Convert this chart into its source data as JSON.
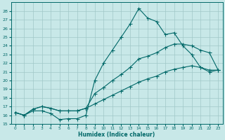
{
  "xlabel": "Humidex (Indice chaleur)",
  "bg_color": "#c8e8e8",
  "grid_color": "#a0c8c8",
  "line_color": "#006868",
  "xlim": [
    -0.5,
    23.5
  ],
  "ylim": [
    15,
    29
  ],
  "yticks": [
    15,
    16,
    17,
    18,
    19,
    20,
    21,
    22,
    23,
    24,
    25,
    26,
    27,
    28
  ],
  "xticks": [
    0,
    1,
    2,
    3,
    4,
    5,
    6,
    7,
    8,
    9,
    10,
    11,
    12,
    13,
    14,
    15,
    16,
    17,
    18,
    19,
    20,
    21,
    22,
    23
  ],
  "series1_x": [
    0,
    1,
    2,
    3,
    4,
    5,
    6,
    7,
    8,
    9,
    10,
    11,
    12,
    13,
    14,
    15,
    16,
    17,
    18,
    19,
    20,
    21,
    22,
    23
  ],
  "series1_y": [
    16.3,
    16.0,
    16.5,
    16.5,
    16.2,
    15.5,
    15.6,
    15.6,
    16.0,
    20.0,
    22.0,
    23.5,
    25.0,
    26.5,
    28.3,
    27.2,
    26.8,
    25.3,
    25.5,
    24.0,
    23.0,
    21.5,
    21.0,
    21.2
  ],
  "series2_x": [
    0,
    1,
    2,
    3,
    4,
    5,
    6,
    7,
    8,
    9,
    10,
    11,
    12,
    13,
    14,
    15,
    16,
    17,
    18,
    19,
    20,
    21,
    22,
    23
  ],
  "series2_y": [
    16.3,
    16.0,
    16.7,
    17.0,
    16.8,
    16.5,
    16.5,
    16.5,
    16.8,
    18.5,
    19.2,
    20.0,
    20.7,
    21.5,
    22.5,
    22.8,
    23.2,
    23.8,
    24.2,
    24.2,
    24.0,
    23.5,
    23.2,
    21.2
  ],
  "series3_x": [
    0,
    1,
    2,
    3,
    4,
    5,
    6,
    7,
    8,
    9,
    10,
    11,
    12,
    13,
    14,
    15,
    16,
    17,
    18,
    19,
    20,
    21,
    22,
    23
  ],
  "series3_y": [
    16.3,
    16.0,
    16.7,
    17.0,
    16.8,
    16.5,
    16.5,
    16.5,
    16.8,
    17.3,
    17.8,
    18.3,
    18.8,
    19.3,
    19.8,
    20.2,
    20.5,
    21.0,
    21.3,
    21.5,
    21.7,
    21.5,
    21.2,
    21.2
  ]
}
